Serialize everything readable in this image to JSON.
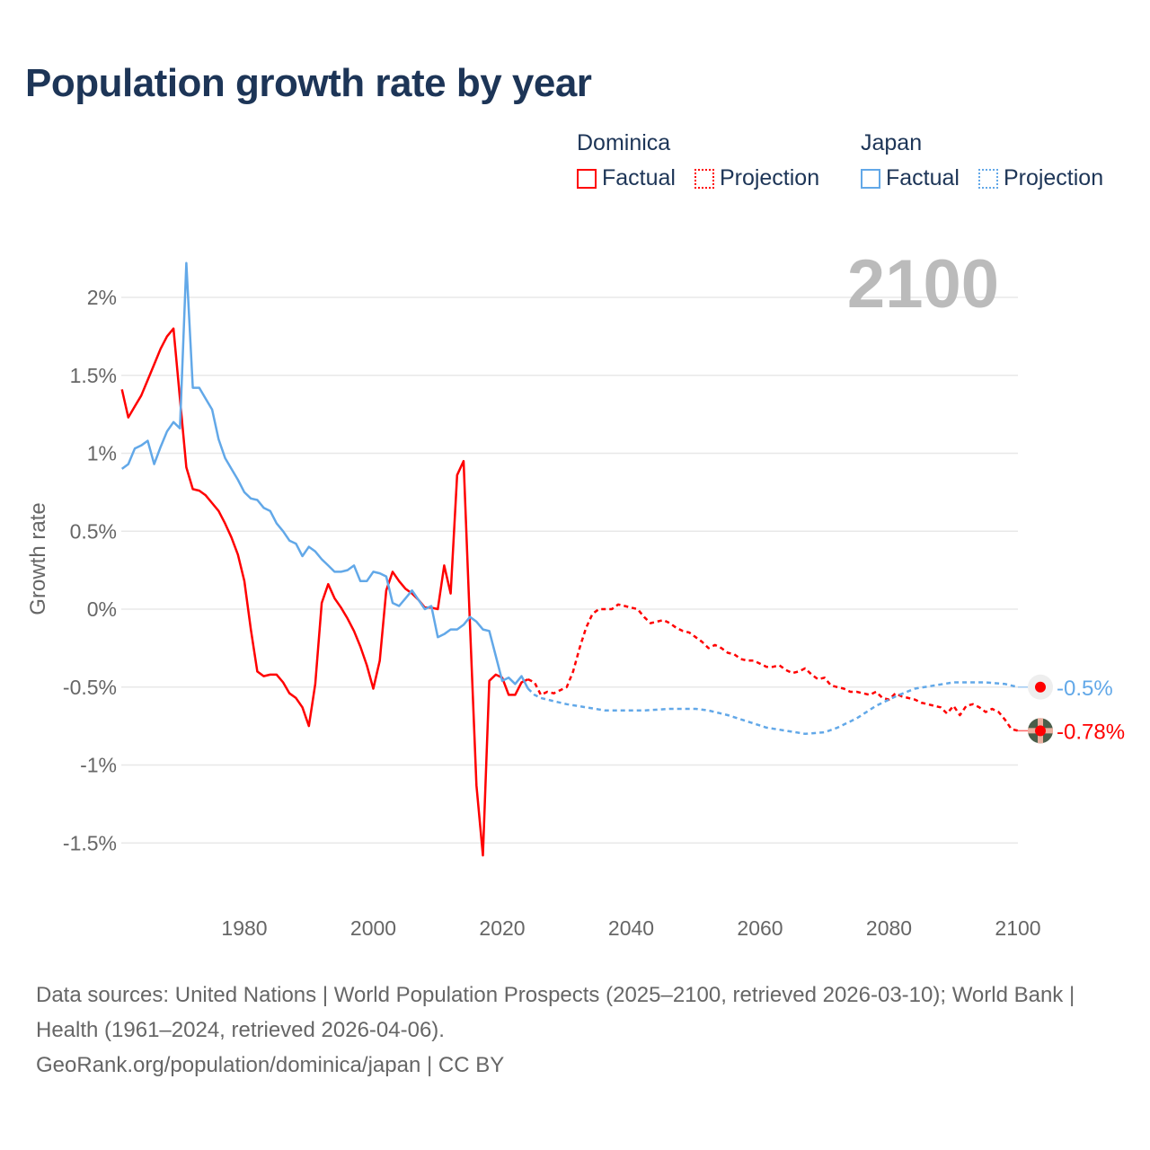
{
  "title": "Population growth rate by year",
  "legend": {
    "groups": [
      {
        "name": "Dominica",
        "color": "#ff0000",
        "items": [
          "Factual",
          "Projection"
        ]
      },
      {
        "name": "Japan",
        "color": "#62a8e8",
        "items": [
          "Factual",
          "Projection"
        ]
      }
    ]
  },
  "footer": {
    "sources": "Data sources: United Nations | World Population Prospects (2025–2100, retrieved 2026-03-10); World Bank | Health (1961–2024, retrieved 2026-04-06).",
    "credit": "GeoRank.org/population/dominica/japan | CC BY"
  },
  "chart_data": {
    "type": "line",
    "title": "Population growth rate by year",
    "ylabel": "Growth rate",
    "xlabel": "",
    "year_label": "2100",
    "xlim": [
      1961,
      2100
    ],
    "ylim": [
      -1.75,
      2.3
    ],
    "x_ticks": [
      1980,
      2000,
      2020,
      2040,
      2060,
      2080,
      2100
    ],
    "y_ticks": [
      2,
      1.5,
      1,
      0.5,
      0,
      -0.5,
      -1,
      -1.5
    ],
    "y_tick_labels": [
      "2%",
      "1.5%",
      "1%",
      "0.5%",
      "0%",
      "-0.5%",
      "-1%",
      "-1.5%"
    ],
    "grid": true,
    "legend_position": "top-right",
    "series": [
      {
        "name": "Dominica Factual",
        "color": "#ff0000",
        "dashed": false,
        "x": [
          1961,
          1962,
          1963,
          1964,
          1965,
          1966,
          1967,
          1968,
          1969,
          1970,
          1971,
          1972,
          1973,
          1974,
          1975,
          1976,
          1977,
          1978,
          1979,
          1980,
          1981,
          1982,
          1983,
          1984,
          1985,
          1986,
          1987,
          1988,
          1989,
          1990,
          1991,
          1992,
          1993,
          1994,
          1995,
          1996,
          1997,
          1998,
          1999,
          2000,
          2001,
          2002,
          2003,
          2004,
          2005,
          2006,
          2007,
          2008,
          2009,
          2010,
          2011,
          2012,
          2013,
          2014,
          2015,
          2016,
          2017,
          2018,
          2019,
          2020,
          2021,
          2022,
          2023,
          2024
        ],
        "values": [
          1.41,
          1.23,
          1.3,
          1.37,
          1.47,
          1.57,
          1.67,
          1.75,
          1.8,
          1.35,
          0.91,
          0.77,
          0.76,
          0.73,
          0.68,
          0.63,
          0.55,
          0.46,
          0.35,
          0.18,
          -0.13,
          -0.4,
          -0.43,
          -0.42,
          -0.42,
          -0.47,
          -0.54,
          -0.57,
          -0.63,
          -0.75,
          -0.48,
          0.04,
          0.16,
          0.07,
          0.01,
          -0.06,
          -0.14,
          -0.24,
          -0.36,
          -0.51,
          -0.33,
          0.12,
          0.24,
          0.18,
          0.13,
          0.1,
          0.06,
          0.01,
          0.01,
          0.0,
          0.28,
          0.1,
          0.86,
          0.95,
          -0.1,
          -1.13,
          -1.58,
          -0.46,
          -0.42,
          -0.44,
          -0.55,
          -0.55,
          -0.47,
          -0.45
        ]
      },
      {
        "name": "Dominica Projection",
        "color": "#ff0000",
        "dashed": true,
        "x": [
          2024,
          2025,
          2026,
          2027,
          2028,
          2029,
          2030,
          2031,
          2032,
          2033,
          2034,
          2035,
          2036,
          2037,
          2038,
          2039,
          2040,
          2041,
          2042,
          2043,
          2044,
          2045,
          2046,
          2047,
          2048,
          2049,
          2050,
          2051,
          2052,
          2053,
          2054,
          2055,
          2056,
          2057,
          2058,
          2059,
          2060,
          2061,
          2062,
          2063,
          2064,
          2065,
          2066,
          2067,
          2068,
          2069,
          2070,
          2071,
          2072,
          2073,
          2074,
          2075,
          2076,
          2077,
          2078,
          2079,
          2080,
          2081,
          2082,
          2083,
          2084,
          2085,
          2086,
          2087,
          2088,
          2089,
          2090,
          2091,
          2092,
          2093,
          2094,
          2095,
          2096,
          2097,
          2098,
          2099,
          2100
        ],
        "values": [
          -0.45,
          -0.47,
          -0.55,
          -0.53,
          -0.54,
          -0.52,
          -0.5,
          -0.4,
          -0.25,
          -0.12,
          -0.03,
          0.0,
          0.0,
          0.0,
          0.03,
          0.02,
          0.01,
          0.0,
          -0.05,
          -0.09,
          -0.08,
          -0.07,
          -0.09,
          -0.12,
          -0.14,
          -0.15,
          -0.18,
          -0.21,
          -0.25,
          -0.23,
          -0.25,
          -0.28,
          -0.29,
          -0.32,
          -0.33,
          -0.33,
          -0.35,
          -0.37,
          -0.37,
          -0.36,
          -0.39,
          -0.41,
          -0.4,
          -0.38,
          -0.42,
          -0.45,
          -0.44,
          -0.49,
          -0.5,
          -0.51,
          -0.53,
          -0.53,
          -0.54,
          -0.55,
          -0.53,
          -0.57,
          -0.58,
          -0.54,
          -0.56,
          -0.57,
          -0.58,
          -0.6,
          -0.61,
          -0.62,
          -0.63,
          -0.67,
          -0.62,
          -0.68,
          -0.62,
          -0.61,
          -0.63,
          -0.66,
          -0.64,
          -0.66,
          -0.71,
          -0.77,
          -0.78
        ]
      },
      {
        "name": "Japan Factual",
        "color": "#62a8e8",
        "dashed": false,
        "x": [
          1961,
          1962,
          1963,
          1964,
          1965,
          1966,
          1967,
          1968,
          1969,
          1970,
          1971,
          1972,
          1973,
          1974,
          1975,
          1976,
          1977,
          1978,
          1979,
          1980,
          1981,
          1982,
          1983,
          1984,
          1985,
          1986,
          1987,
          1988,
          1989,
          1990,
          1991,
          1992,
          1993,
          1994,
          1995,
          1996,
          1997,
          1998,
          1999,
          2000,
          2001,
          2002,
          2003,
          2004,
          2005,
          2006,
          2007,
          2008,
          2009,
          2010,
          2011,
          2012,
          2013,
          2014,
          2015,
          2016,
          2017,
          2018,
          2019,
          2020,
          2021,
          2022,
          2023,
          2024
        ],
        "values": [
          0.9,
          0.93,
          1.03,
          1.05,
          1.08,
          0.93,
          1.04,
          1.14,
          1.2,
          1.16,
          2.22,
          1.42,
          1.42,
          1.35,
          1.28,
          1.09,
          0.97,
          0.9,
          0.83,
          0.75,
          0.71,
          0.7,
          0.65,
          0.63,
          0.55,
          0.5,
          0.44,
          0.42,
          0.34,
          0.4,
          0.37,
          0.32,
          0.28,
          0.24,
          0.24,
          0.25,
          0.28,
          0.18,
          0.18,
          0.24,
          0.23,
          0.21,
          0.04,
          0.02,
          0.07,
          0.12,
          0.06,
          0.0,
          0.02,
          -0.18,
          -0.16,
          -0.13,
          -0.13,
          -0.1,
          -0.05,
          -0.08,
          -0.13,
          -0.14,
          -0.3,
          -0.46,
          -0.44,
          -0.48,
          -0.43,
          -0.51
        ]
      },
      {
        "name": "Japan Projection",
        "color": "#62a8e8",
        "dashed": true,
        "x": [
          2024,
          2025,
          2026,
          2028,
          2030,
          2033,
          2036,
          2040,
          2042,
          2046,
          2050,
          2052,
          2055,
          2058,
          2061,
          2064,
          2067,
          2070,
          2072,
          2075,
          2078,
          2081,
          2084,
          2087,
          2090,
          2095,
          2098,
          2100
        ],
        "values": [
          -0.51,
          -0.55,
          -0.57,
          -0.59,
          -0.61,
          -0.63,
          -0.65,
          -0.65,
          -0.65,
          -0.64,
          -0.64,
          -0.65,
          -0.68,
          -0.72,
          -0.76,
          -0.78,
          -0.8,
          -0.79,
          -0.76,
          -0.7,
          -0.62,
          -0.56,
          -0.51,
          -0.49,
          -0.47,
          -0.47,
          -0.48,
          -0.5
        ]
      }
    ],
    "end_labels": [
      {
        "series": "Japan",
        "text": "-0.5%",
        "value": -0.5,
        "color": "#62a8e8"
      },
      {
        "series": "Dominica",
        "text": "-0.78%",
        "value": -0.78,
        "color": "#ff0000"
      }
    ]
  }
}
